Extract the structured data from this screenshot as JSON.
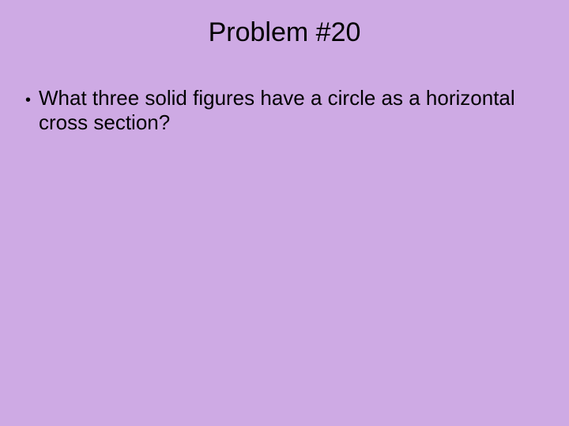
{
  "slide": {
    "background_color": "#ceaae4",
    "text_color": "#000000",
    "title": {
      "text": "Problem #20",
      "fontsize": 34
    },
    "bullet": {
      "marker": "•",
      "marker_fontsize": 20,
      "text": "What three solid figures have a circle as a horizontal cross section?",
      "fontsize": 26
    }
  }
}
